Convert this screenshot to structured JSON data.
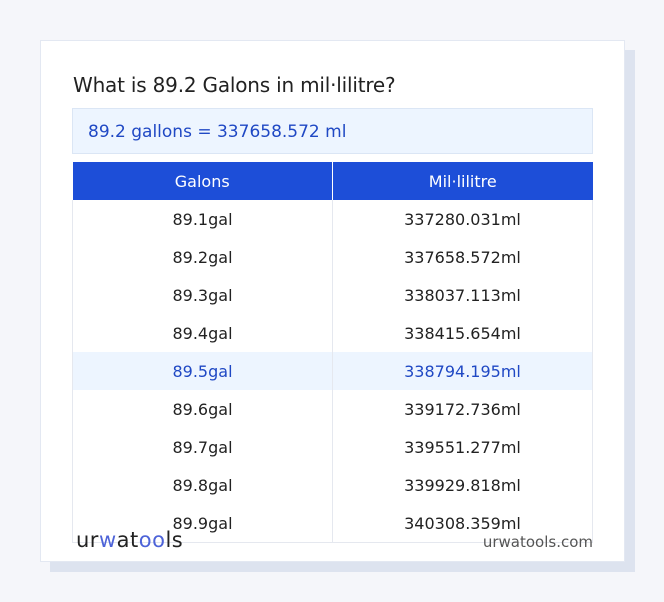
{
  "title": "What is 89.2 Galons in mil·lilitre?",
  "result": "89.2 gallons = 337658.572 ml",
  "table": {
    "headers": [
      "Galons",
      "Mil·lilitre"
    ],
    "rows": [
      [
        "89.1gal",
        "337280.031ml"
      ],
      [
        "89.2gal",
        "337658.572ml"
      ],
      [
        "89.3gal",
        "338037.113ml"
      ],
      [
        "89.4gal",
        "338415.654ml"
      ],
      [
        "89.5gal",
        "338794.195ml"
      ],
      [
        "89.6gal",
        "339172.736ml"
      ],
      [
        "89.7gal",
        "339551.277ml"
      ],
      [
        "89.8gal",
        "339929.818ml"
      ],
      [
        "89.9gal",
        "340308.359ml"
      ]
    ],
    "highlighted_row": 4
  },
  "footer": {
    "logo": {
      "a": "ur",
      "b": "w",
      "c": "at",
      "d": "oo",
      "e": "ls"
    },
    "site": "urwatools.com"
  },
  "colors": {
    "accent": "#1d4ed8",
    "highlight_bg": "#edf5ff"
  }
}
